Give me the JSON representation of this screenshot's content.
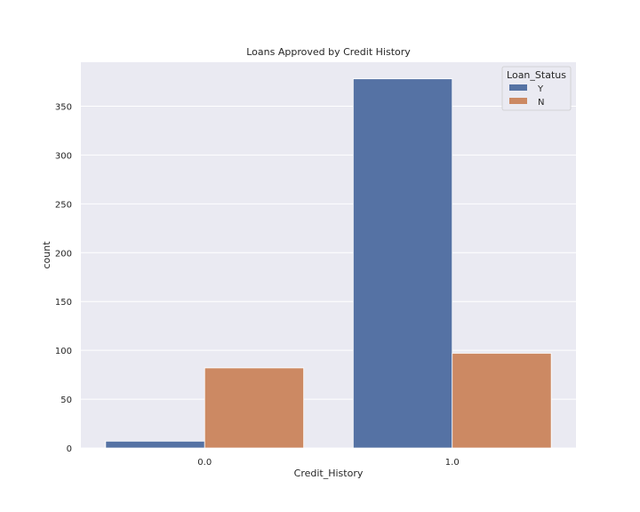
{
  "chart_data": {
    "type": "bar",
    "title": "Loans Approved by Credit History",
    "xlabel": "Credit_History",
    "ylabel": "count",
    "categories": [
      "0.0",
      "1.0"
    ],
    "series": [
      {
        "name": "Y",
        "values": [
          7,
          378
        ],
        "color": "#5572a4"
      },
      {
        "name": "N",
        "values": [
          82,
          97
        ],
        "color": "#cc8963"
      }
    ],
    "ylim": [
      0,
      395
    ],
    "yticks": [
      0,
      50,
      100,
      150,
      200,
      250,
      300,
      350
    ],
    "legend": {
      "title": "Loan_Status",
      "placement": "top-right"
    },
    "grid": true,
    "background": "#eaeaf2",
    "grid_color": "#ffffff"
  }
}
